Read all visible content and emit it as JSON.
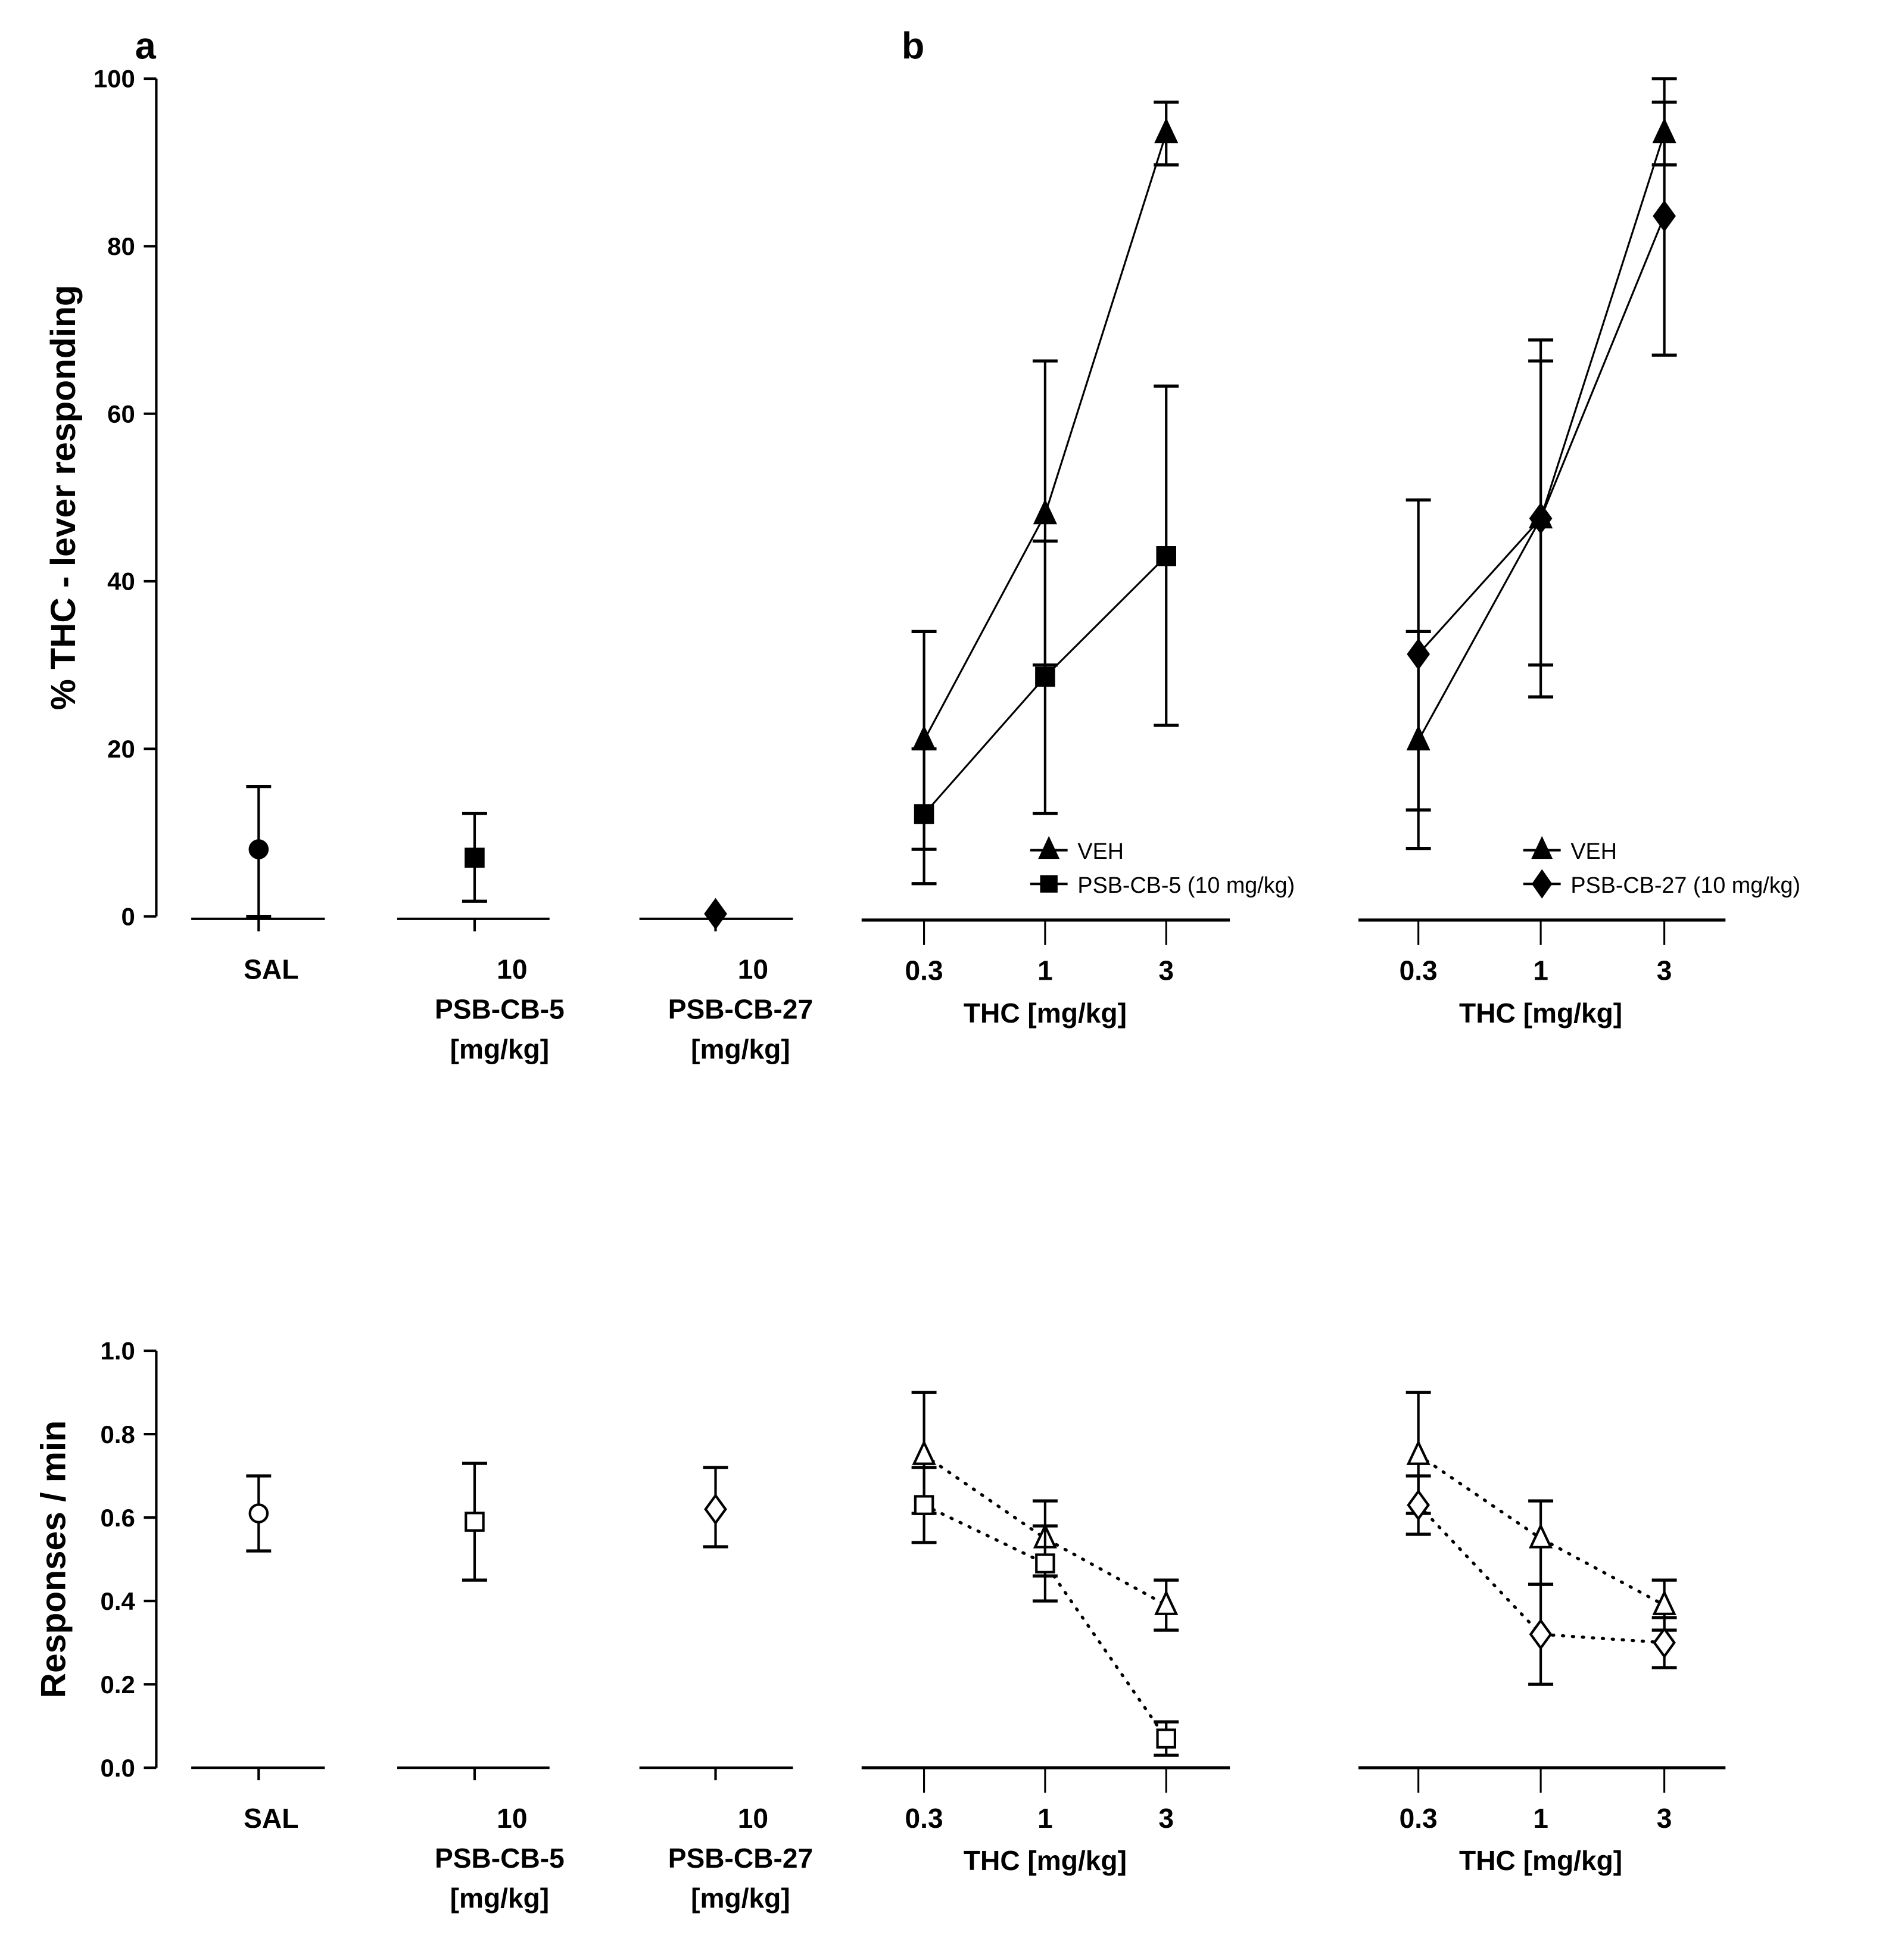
{
  "chart_data": [
    {
      "type": "scatter",
      "panel": "a",
      "ylabel": "% THC - lever responding",
      "ylim": [
        0,
        100
      ],
      "yticks": [
        "0",
        "20",
        "40",
        "60",
        "80",
        "100"
      ],
      "groups": [
        {
          "label_lines": [
            "SAL"
          ],
          "marker": "circle",
          "value": 8,
          "err": [
            0,
            15.5
          ]
        },
        {
          "label_lines": [
            "10",
            "PSB-CB-5",
            "[mg/kg]"
          ],
          "marker": "square",
          "value": 7,
          "err": [
            1.8,
            12.3
          ]
        },
        {
          "label_lines": [
            "10",
            "PSB-CB-27",
            "[mg/kg]"
          ],
          "marker": "diamond",
          "value": 0.3,
          "err": [
            0.3,
            0.3
          ]
        }
      ]
    },
    {
      "type": "line",
      "panel": "b",
      "xlabel": "THC [mg/kg]",
      "categories": [
        "0.3",
        "1",
        "3"
      ],
      "ylim": [
        0,
        100
      ],
      "series": [
        {
          "name": "VEH",
          "marker": "triangle",
          "values": [
            21,
            48,
            93.5
          ],
          "lo": [
            8,
            30,
            89.7
          ],
          "hi": [
            34,
            66.3,
            97.2
          ]
        },
        {
          "name": "PSB-CB-5 (10 mg/kg)",
          "marker": "square",
          "values": [
            12.2,
            28.6,
            43
          ],
          "lo": [
            3.9,
            12.3,
            22.8
          ],
          "hi": [
            20,
            44.8,
            63.3
          ]
        }
      ]
    },
    {
      "type": "line",
      "panel": "b2",
      "xlabel": "THC [mg/kg]",
      "categories": [
        "0.3",
        "1",
        "3"
      ],
      "ylim": [
        0,
        100
      ],
      "series": [
        {
          "name": "VEH",
          "marker": "triangle",
          "values": [
            21,
            47.5,
            93.5
          ],
          "lo": [
            8.1,
            30,
            89.7
          ],
          "hi": [
            34,
            66.3,
            100
          ]
        },
        {
          "name": "PSB-CB-27 (10 mg/kg)",
          "marker": "diamond",
          "values": [
            31.3,
            47.5,
            83.6
          ],
          "lo": [
            12.7,
            26.2,
            67
          ],
          "hi": [
            49.7,
            68.8,
            97.2
          ]
        }
      ]
    },
    {
      "type": "scatter",
      "panel": "a-rate",
      "ylabel": "Responses / min",
      "ylim": [
        0,
        1
      ],
      "yticks": [
        "0.0",
        "0.2",
        "0.4",
        "0.6",
        "0.8",
        "1.0"
      ],
      "groups": [
        {
          "label_lines": [
            "SAL"
          ],
          "marker": "circle",
          "value": 0.61,
          "err": [
            0.52,
            0.7
          ]
        },
        {
          "label_lines": [
            "10",
            "PSB-CB-5",
            "[mg/kg]"
          ],
          "marker": "square",
          "value": 0.59,
          "err": [
            0.45,
            0.73
          ]
        },
        {
          "label_lines": [
            "10",
            "PSB-CB-27",
            "[mg/kg]"
          ],
          "marker": "diamond",
          "value": 0.62,
          "err": [
            0.53,
            0.72
          ]
        }
      ]
    },
    {
      "type": "line",
      "panel": "b-rate",
      "xlabel": "THC [mg/kg]",
      "categories": [
        "0.3",
        "1",
        "3"
      ],
      "ylim": [
        0,
        1
      ],
      "series": [
        {
          "name": "VEH",
          "marker": "triangle",
          "values": [
            0.75,
            0.55,
            0.39
          ],
          "lo": [
            0.61,
            0.46,
            0.33
          ],
          "hi": [
            0.9,
            0.64,
            0.45
          ]
        },
        {
          "name": "PSB-CB-5 (10 mg/kg)",
          "marker": "square",
          "values": [
            0.63,
            0.49,
            0.07
          ],
          "lo": [
            0.54,
            0.4,
            0.03
          ],
          "hi": [
            0.72,
            0.58,
            0.11
          ]
        }
      ]
    },
    {
      "type": "line",
      "panel": "b2-rate",
      "xlabel": "THC [mg/kg]",
      "categories": [
        "0.3",
        "1",
        "3"
      ],
      "ylim": [
        0,
        1
      ],
      "series": [
        {
          "name": "VEH",
          "marker": "triangle",
          "values": [
            0.75,
            0.55,
            0.39
          ],
          "lo": [
            0.61,
            0.44,
            0.33
          ],
          "hi": [
            0.9,
            0.64,
            0.45
          ]
        },
        {
          "name": "PSB-CB-27 (10 mg/kg)",
          "marker": "diamond",
          "values": [
            0.63,
            0.32,
            0.3
          ],
          "lo": [
            0.56,
            0.2,
            0.24
          ],
          "hi": [
            0.7,
            0.44,
            0.36
          ]
        }
      ]
    }
  ],
  "panel_labels": {
    "a": "a",
    "b": "b"
  }
}
